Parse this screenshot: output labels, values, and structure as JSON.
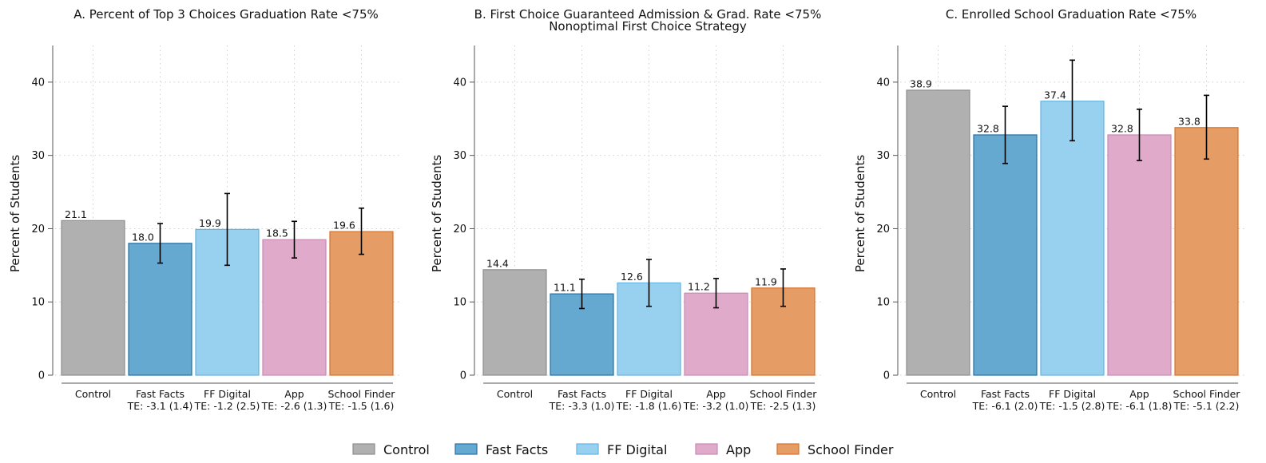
{
  "colors": {
    "Control": {
      "fill": "#b0b0b0",
      "stroke": "#8e8e8e"
    },
    "Fast Facts": {
      "fill": "#65a8d0",
      "stroke": "#2771a8"
    },
    "FF Digital": {
      "fill": "#98d0ef",
      "stroke": "#64b5e2"
    },
    "App": {
      "fill": "#e0aacb",
      "stroke": "#c98ab3"
    },
    "School Finder": {
      "fill": "#e59c65",
      "stroke": "#d6732d"
    }
  },
  "legend": [
    "Control",
    "Fast Facts",
    "FF Digital",
    "App",
    "School Finder"
  ],
  "chart_data": [
    {
      "type": "bar",
      "title": "A. Percent of Top 3 Choices Graduation Rate <75%",
      "ylabel": "Percent of Students",
      "ylim": [
        0,
        45
      ],
      "yticks": [
        0,
        10,
        20,
        30,
        40
      ],
      "grid": true,
      "categories": [
        "Control",
        "Fast Facts",
        "FF Digital",
        "App",
        "School Finder"
      ],
      "values": [
        21.1,
        18.0,
        19.9,
        18.5,
        19.6
      ],
      "value_labels": [
        "21.1",
        "18.0",
        "19.9",
        "18.5",
        "19.6"
      ],
      "error_bars": [
        null,
        [
          15.3,
          20.7
        ],
        [
          15.0,
          24.8
        ],
        [
          16.0,
          21.0
        ],
        [
          16.5,
          22.8
        ]
      ],
      "te_labels": [
        "",
        "TE: -3.1 (1.4)",
        "TE: -1.2 (2.5)",
        "TE: -2.6 (1.3)",
        "TE: -1.5 (1.6)"
      ]
    },
    {
      "type": "bar",
      "title": "B. First Choice Guaranteed Admission & Grad. Rate <75%",
      "subtitle": "Nonoptimal First Choice Strategy",
      "ylabel": "Percent of Students",
      "ylim": [
        0,
        45
      ],
      "yticks": [
        0,
        10,
        20,
        30,
        40
      ],
      "grid": true,
      "categories": [
        "Control",
        "Fast Facts",
        "FF Digital",
        "App",
        "School Finder"
      ],
      "values": [
        14.4,
        11.1,
        12.6,
        11.2,
        11.9
      ],
      "value_labels": [
        "14.4",
        "11.1",
        "12.6",
        "11.2",
        "11.9"
      ],
      "error_bars": [
        null,
        [
          9.1,
          13.1
        ],
        [
          9.4,
          15.8
        ],
        [
          9.2,
          13.2
        ],
        [
          9.4,
          14.5
        ]
      ],
      "te_labels": [
        "",
        "TE: -3.3 (1.0)",
        "TE: -1.8 (1.6)",
        "TE: -3.2 (1.0)",
        "TE: -2.5 (1.3)"
      ]
    },
    {
      "type": "bar",
      "title": "C. Enrolled School Graduation Rate <75%",
      "ylabel": "Percent of Students",
      "ylim": [
        0,
        45
      ],
      "yticks": [
        0,
        10,
        20,
        30,
        40
      ],
      "grid": true,
      "categories": [
        "Control",
        "Fast Facts",
        "FF Digital",
        "App",
        "School Finder"
      ],
      "values": [
        38.9,
        32.8,
        37.4,
        32.8,
        33.8
      ],
      "value_labels": [
        "38.9",
        "32.8",
        "37.4",
        "32.8",
        "33.8"
      ],
      "error_bars": [
        null,
        [
          28.9,
          36.7
        ],
        [
          32.0,
          43.0
        ],
        [
          29.3,
          36.3
        ],
        [
          29.5,
          38.2
        ]
      ],
      "te_labels": [
        "",
        "TE: -6.1 (2.0)",
        "TE: -1.5 (2.8)",
        "TE: -6.1 (1.8)",
        "TE: -5.1 (2.2)"
      ]
    }
  ]
}
